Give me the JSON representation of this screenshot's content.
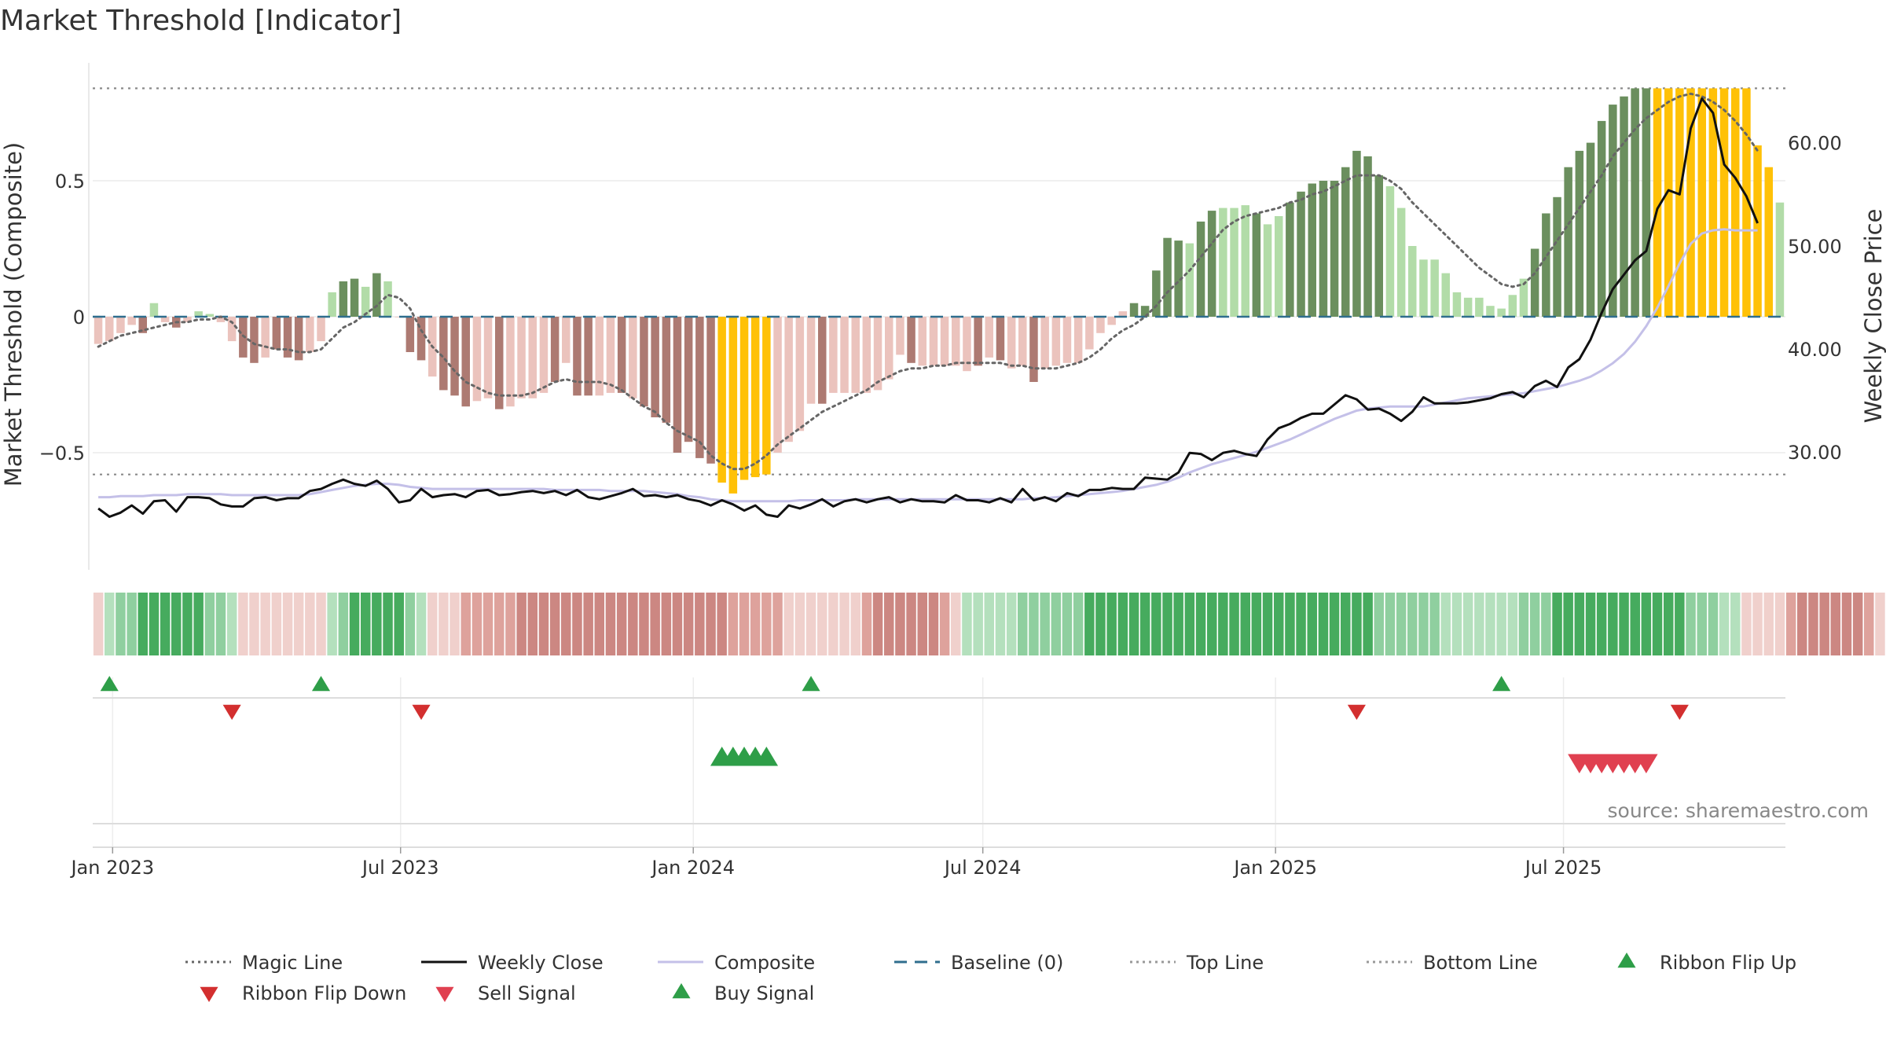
{
  "chart_data": {
    "type": "bar",
    "title": "Market Threshold [Indicator]",
    "ylabel_left": "Market Threshold (Composite)",
    "ylabel_right": "Weekly Close Price",
    "source": "source: sharemaestro.com",
    "x_start": "2022-12-23",
    "x_ticks": [
      {
        "label": "Jan 2023",
        "date": "2023-01-01"
      },
      {
        "label": "Jul 2023",
        "date": "2023-07-01"
      },
      {
        "label": "Jan 2024",
        "date": "2024-01-01"
      },
      {
        "label": "Jul 2024",
        "date": "2024-07-01"
      },
      {
        "label": "Jan 2025",
        "date": "2025-01-01"
      },
      {
        "label": "Jul 2025",
        "date": "2025-07-01"
      }
    ],
    "y_left": {
      "ticks": [
        {
          "v": 0.5,
          "label": "0.5"
        },
        {
          "v": 0,
          "label": "0"
        },
        {
          "v": -0.5,
          "label": "−0.5"
        }
      ],
      "range": [
        -0.92,
        0.92
      ]
    },
    "y_right": {
      "ticks": [
        {
          "v": 60,
          "label": "60.00"
        },
        {
          "v": 50,
          "label": "50.00"
        },
        {
          "v": 40,
          "label": "40.00"
        },
        {
          "v": 30,
          "label": "30.00"
        }
      ],
      "range": [
        20,
        67
      ]
    },
    "top_line": 0.84,
    "bottom_line": -0.58,
    "composite_bars": [
      -0.1,
      -0.09,
      -0.06,
      -0.03,
      -0.06,
      0.05,
      -0.02,
      -0.04,
      -0.02,
      0.02,
      0.01,
      -0.02,
      -0.09,
      -0.15,
      -0.17,
      -0.15,
      -0.12,
      -0.15,
      -0.16,
      -0.13,
      -0.09,
      0.09,
      0.13,
      0.14,
      0.11,
      0.16,
      0.13,
      0.0,
      -0.13,
      -0.16,
      -0.22,
      -0.27,
      -0.29,
      -0.33,
      -0.31,
      -0.3,
      -0.34,
      -0.33,
      -0.3,
      -0.3,
      -0.28,
      -0.24,
      -0.17,
      -0.29,
      -0.29,
      -0.29,
      -0.28,
      -0.28,
      -0.3,
      -0.33,
      -0.37,
      -0.39,
      -0.5,
      -0.46,
      -0.52,
      -0.54,
      -0.61,
      -0.65,
      -0.6,
      -0.59,
      -0.58,
      -0.5,
      -0.46,
      -0.42,
      -0.32,
      -0.32,
      -0.28,
      -0.28,
      -0.28,
      -0.28,
      -0.27,
      -0.23,
      -0.14,
      -0.17,
      -0.18,
      -0.18,
      -0.18,
      -0.18,
      -0.2,
      -0.18,
      -0.15,
      -0.16,
      -0.19,
      -0.18,
      -0.24,
      -0.19,
      -0.18,
      -0.17,
      -0.17,
      -0.12,
      -0.06,
      -0.03,
      0.02,
      0.05,
      0.04,
      0.17,
      0.29,
      0.28,
      0.27,
      0.35,
      0.39,
      0.4,
      0.4,
      0.41,
      0.38,
      0.34,
      0.37,
      0.42,
      0.46,
      0.49,
      0.5,
      0.5,
      0.55,
      0.61,
      0.59,
      0.52,
      0.48,
      0.4,
      0.26,
      0.21,
      0.21,
      0.16,
      0.09,
      0.07,
      0.07,
      0.04,
      0.03,
      0.08,
      0.14,
      0.25,
      0.38,
      0.44,
      0.55,
      0.61,
      0.64,
      0.72,
      0.78,
      0.81,
      0.84,
      0.84,
      0.84,
      0.84,
      0.84,
      0.84,
      0.84,
      0.84,
      0.84,
      0.84,
      0.84,
      0.63,
      0.55,
      0.42
    ],
    "bar_styles": [
      "lp",
      "lp",
      "lp",
      "lp",
      "dr",
      "lg",
      "lp",
      "dr",
      "lp",
      "lg",
      "lg",
      "lp",
      "lp",
      "dr",
      "dr",
      "lp",
      "dr",
      "dr",
      "dr",
      "lp",
      "lp",
      "lg",
      "dg",
      "dg",
      "lg",
      "dg",
      "lg",
      "lp",
      "dr",
      "dr",
      "lp",
      "dr",
      "dr",
      "dr",
      "lp",
      "lp",
      "dr",
      "lp",
      "lp",
      "lp",
      "lp",
      "dr",
      "lp",
      "dr",
      "dr",
      "lp",
      "lp",
      "dr",
      "lp",
      "dr",
      "dr",
      "dr",
      "dr",
      "dr",
      "dr",
      "dr",
      "gd",
      "gd",
      "gd",
      "gd",
      "gd",
      "lp",
      "lp",
      "lp",
      "lp",
      "dr",
      "lp",
      "lp",
      "lp",
      "lp",
      "lp",
      "lp",
      "lp",
      "dr",
      "lp",
      "lp",
      "lp",
      "lp",
      "lp",
      "dr",
      "lp",
      "dr",
      "lp",
      "lp",
      "dr",
      "lp",
      "lp",
      "lp",
      "lp",
      "lp",
      "lp",
      "lp",
      "lp",
      "dg",
      "dg",
      "dg",
      "dg",
      "dg",
      "lg",
      "dg",
      "dg",
      "lg",
      "lg",
      "lg",
      "dg",
      "lg",
      "lg",
      "dg",
      "dg",
      "dg",
      "dg",
      "dg",
      "dg",
      "dg",
      "dg",
      "dg",
      "lg",
      "lg",
      "lg",
      "lg",
      "lg",
      "lg",
      "lg",
      "lg",
      "lg",
      "lg",
      "lg",
      "lg",
      "lg",
      "dg",
      "dg",
      "dg",
      "dg",
      "dg",
      "dg",
      "dg",
      "dg",
      "dg",
      "dg",
      "dg",
      "gd",
      "gd",
      "gd",
      "gd",
      "gd",
      "gd",
      "gd",
      "gd",
      "gd",
      "gd",
      "gd",
      "lg",
      "lg",
      "lg"
    ],
    "magic_line": [
      -0.11,
      -0.09,
      -0.07,
      -0.06,
      -0.05,
      -0.04,
      -0.03,
      -0.02,
      -0.02,
      -0.01,
      -0.01,
      0.0,
      -0.02,
      -0.07,
      -0.1,
      -0.11,
      -0.12,
      -0.12,
      -0.13,
      -0.13,
      -0.12,
      -0.08,
      -0.04,
      -0.02,
      0.01,
      0.04,
      0.08,
      0.07,
      0.03,
      -0.05,
      -0.11,
      -0.15,
      -0.2,
      -0.24,
      -0.26,
      -0.28,
      -0.29,
      -0.29,
      -0.29,
      -0.28,
      -0.26,
      -0.24,
      -0.23,
      -0.24,
      -0.24,
      -0.24,
      -0.25,
      -0.27,
      -0.3,
      -0.33,
      -0.35,
      -0.39,
      -0.42,
      -0.44,
      -0.46,
      -0.51,
      -0.54,
      -0.56,
      -0.56,
      -0.54,
      -0.51,
      -0.47,
      -0.44,
      -0.41,
      -0.38,
      -0.35,
      -0.33,
      -0.31,
      -0.29,
      -0.27,
      -0.24,
      -0.22,
      -0.2,
      -0.19,
      -0.19,
      -0.18,
      -0.18,
      -0.17,
      -0.17,
      -0.17,
      -0.17,
      -0.17,
      -0.18,
      -0.18,
      -0.19,
      -0.19,
      -0.19,
      -0.18,
      -0.17,
      -0.15,
      -0.12,
      -0.08,
      -0.05,
      -0.03,
      0.0,
      0.04,
      0.09,
      0.13,
      0.17,
      0.22,
      0.27,
      0.32,
      0.35,
      0.37,
      0.38,
      0.39,
      0.4,
      0.42,
      0.43,
      0.45,
      0.46,
      0.48,
      0.5,
      0.52,
      0.52,
      0.52,
      0.5,
      0.47,
      0.42,
      0.38,
      0.34,
      0.3,
      0.26,
      0.22,
      0.18,
      0.15,
      0.12,
      0.11,
      0.12,
      0.16,
      0.22,
      0.28,
      0.34,
      0.4,
      0.46,
      0.52,
      0.59,
      0.64,
      0.69,
      0.73,
      0.76,
      0.79,
      0.81,
      0.82,
      0.81,
      0.79,
      0.76,
      0.72,
      0.67,
      0.61
    ],
    "weekly_close": [
      24.5,
      23.7,
      24.1,
      24.8,
      24.0,
      25.2,
      25.3,
      24.2,
      25.6,
      25.6,
      25.5,
      24.9,
      24.7,
      24.7,
      25.5,
      25.6,
      25.3,
      25.5,
      25.5,
      26.2,
      26.4,
      26.9,
      27.3,
      26.9,
      26.7,
      27.2,
      26.4,
      25.1,
      25.3,
      26.4,
      25.6,
      25.8,
      25.9,
      25.6,
      26.2,
      26.3,
      25.8,
      25.9,
      26.1,
      26.2,
      26.0,
      26.2,
      25.8,
      26.3,
      25.6,
      25.4,
      25.7,
      26.0,
      26.4,
      25.7,
      25.8,
      25.6,
      25.8,
      25.4,
      25.2,
      24.8,
      25.3,
      24.9,
      24.3,
      24.8,
      23.9,
      23.7,
      24.8,
      24.5,
      24.9,
      25.4,
      24.7,
      25.2,
      25.4,
      25.1,
      25.4,
      25.6,
      25.1,
      25.4,
      25.2,
      25.2,
      25.1,
      25.8,
      25.3,
      25.3,
      25.1,
      25.5,
      25.1,
      26.4,
      25.3,
      25.6,
      25.2,
      26.0,
      25.7,
      26.3,
      26.3,
      26.5,
      26.4,
      26.4,
      27.5,
      27.4,
      27.3,
      28.0,
      29.9,
      29.8,
      29.2,
      29.9,
      30.1,
      29.8,
      29.6,
      31.2,
      32.3,
      32.7,
      33.3,
      33.7,
      33.7,
      34.6,
      35.5,
      35.1,
      34.1,
      34.2,
      33.7,
      33.0,
      33.9,
      35.3,
      34.7,
      34.7,
      34.7,
      34.8,
      35.0,
      35.2,
      35.6,
      35.8,
      35.3,
      36.4,
      36.9,
      36.3,
      38.2,
      39.0,
      40.9,
      43.5,
      45.8,
      47.2,
      48.6,
      49.5,
      53.6,
      55.4,
      55.0,
      61.4,
      64.3,
      62.9,
      57.9,
      56.6,
      54.8,
      52.2
    ],
    "composite_line": [
      25.6,
      25.6,
      25.7,
      25.7,
      25.7,
      25.8,
      25.8,
      25.8,
      25.9,
      25.9,
      25.9,
      25.9,
      25.8,
      25.8,
      25.8,
      25.8,
      25.8,
      25.8,
      25.8,
      25.9,
      26.1,
      26.3,
      26.5,
      26.7,
      26.8,
      26.9,
      26.9,
      26.8,
      26.6,
      26.5,
      26.4,
      26.4,
      26.4,
      26.4,
      26.4,
      26.4,
      26.4,
      26.4,
      26.4,
      26.4,
      26.4,
      26.3,
      26.3,
      26.3,
      26.3,
      26.3,
      26.2,
      26.2,
      26.2,
      26.2,
      26.1,
      26.0,
      25.9,
      25.7,
      25.6,
      25.4,
      25.3,
      25.2,
      25.2,
      25.2,
      25.2,
      25.2,
      25.2,
      25.3,
      25.3,
      25.3,
      25.3,
      25.3,
      25.4,
      25.4,
      25.4,
      25.4,
      25.4,
      25.4,
      25.4,
      25.4,
      25.4,
      25.4,
      25.4,
      25.4,
      25.4,
      25.4,
      25.4,
      25.4,
      25.5,
      25.5,
      25.6,
      25.7,
      25.8,
      25.9,
      26.0,
      26.1,
      26.2,
      26.4,
      26.6,
      26.8,
      27.1,
      27.5,
      28.0,
      28.4,
      28.8,
      29.1,
      29.4,
      29.7,
      30.0,
      30.4,
      30.8,
      31.2,
      31.7,
      32.2,
      32.7,
      33.2,
      33.6,
      34.0,
      34.2,
      34.3,
      34.4,
      34.4,
      34.4,
      34.4,
      34.6,
      34.8,
      35.0,
      35.2,
      35.3,
      35.4,
      35.5,
      35.6,
      35.7,
      35.9,
      36.1,
      36.3,
      36.6,
      36.9,
      37.3,
      37.9,
      38.6,
      39.5,
      40.7,
      42.2,
      44.0,
      46.1,
      48.3,
      50.2,
      51.2,
      51.5,
      51.6,
      51.5,
      51.5,
      51.5
    ],
    "ribbon": [
      [
        "lp",
        1
      ],
      [
        "g",
        12
      ],
      [
        "lp",
        8
      ],
      [
        "g",
        9
      ],
      [
        "r",
        35
      ],
      [
        "lp",
        3
      ],
      [
        "r",
        10
      ],
      [
        "g",
        48
      ],
      [
        "g",
        22
      ],
      [
        "lp",
        3
      ],
      [
        "r",
        10
      ],
      [
        "lp",
        2
      ],
      [
        "g",
        15
      ],
      [
        "r",
        2
      ]
    ],
    "ribbon_flip_up_weeks": [
      1,
      20,
      64,
      126
    ],
    "ribbon_flip_down_weeks": [
      12,
      29,
      113,
      142
    ],
    "buy_signal_weeks": [
      56,
      57,
      58,
      59,
      60
    ],
    "sell_signal_weeks": [
      133,
      134,
      135,
      136,
      137,
      138,
      139
    ],
    "legend": [
      {
        "label": "Magic Line",
        "kind": "dotted",
        "color": "#666666"
      },
      {
        "label": "Weekly Close",
        "kind": "solid",
        "color": "#111111"
      },
      {
        "label": "Composite",
        "kind": "solid",
        "color": "#c4c0e8"
      },
      {
        "label": "Baseline (0)",
        "kind": "dashed",
        "color": "#2f6e8e"
      },
      {
        "label": "Top Line",
        "kind": "dotted",
        "color": "#999999"
      },
      {
        "label": "Bottom Line",
        "kind": "dotted",
        "color": "#999999"
      },
      {
        "label": "Ribbon Flip Up",
        "kind": "tri-up",
        "color": "#2e9e48"
      },
      {
        "label": "Ribbon Flip Down",
        "kind": "tri-down",
        "color": "#d32f2f"
      },
      {
        "label": "Sell Signal",
        "kind": "tri-down",
        "color": "#e04050"
      },
      {
        "label": "Buy Signal",
        "kind": "tri-up",
        "color": "#2e9e48"
      }
    ],
    "colors": {
      "dark_green": "#6b8f5e",
      "light_green": "#b2dca8",
      "dark_red": "#ad7a72",
      "light_pink": "#ebc3bd",
      "gold": "#ffc107",
      "baseline": "#2f6e8e",
      "magic": "#666666",
      "close": "#111111",
      "composite": "#c4c0e8",
      "ribbon_green_light": "#b4e0bd",
      "ribbon_green": "#8fcf9f",
      "ribbon_green_dark": "#46ab5e",
      "ribbon_red_light": "#f0d0cc",
      "ribbon_red": "#dea29c",
      "ribbon_red_dark": "#cc8782"
    }
  }
}
